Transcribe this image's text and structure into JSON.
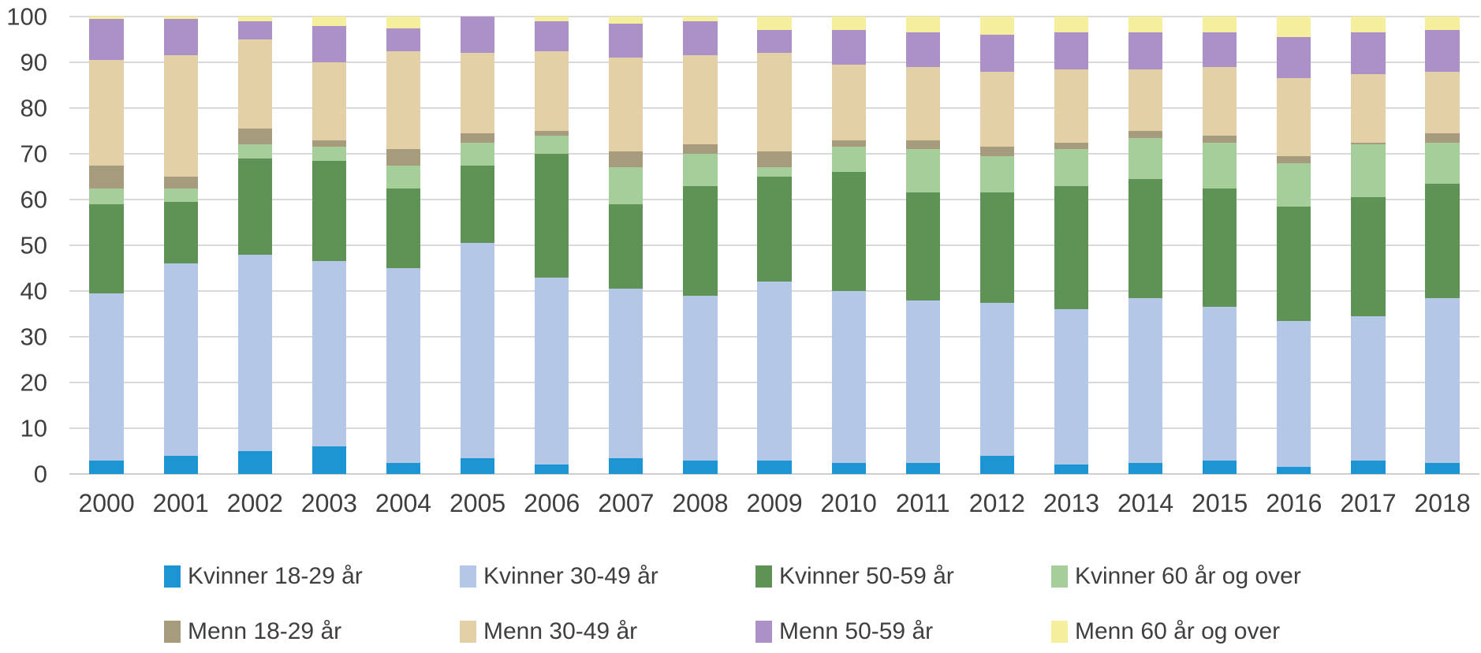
{
  "chart_data": {
    "type": "bar",
    "stacked": true,
    "normalized_to_100": true,
    "title": "",
    "xlabel": "",
    "ylabel": "",
    "ylim": [
      0,
      100
    ],
    "yticks": [
      0,
      10,
      20,
      30,
      40,
      50,
      60,
      70,
      80,
      90,
      100
    ],
    "grid": true,
    "legend_position": "bottom-two-rows",
    "axis_text_color": "#3f3f3f",
    "gridline_color": "#d9d9d9",
    "background_color": "#ffffff",
    "categories": [
      "2000",
      "2001",
      "2002",
      "2003",
      "2004",
      "2005",
      "2006",
      "2007",
      "2008",
      "2009",
      "2010",
      "2011",
      "2012",
      "2013",
      "2014",
      "2015",
      "2016",
      "2017",
      "2018"
    ],
    "series": [
      {
        "name": "Kvinner 18-29 år",
        "color": "#1e95d3",
        "values": [
          3,
          4,
          5,
          6,
          2.5,
          3.5,
          2,
          3.5,
          3,
          3,
          2.5,
          2.5,
          4,
          2,
          2.5,
          3,
          1.5,
          3,
          2.5
        ]
      },
      {
        "name": "Kvinner 30-49 år",
        "color": "#b4c7e7",
        "values": [
          36.5,
          42,
          43,
          40.5,
          42.5,
          47,
          41,
          37,
          36,
          39,
          37.5,
          35.5,
          33.5,
          34,
          36,
          33.5,
          32,
          31.5,
          36
        ]
      },
      {
        "name": "Kvinner 50-59 år",
        "color": "#5f9255",
        "values": [
          19.5,
          13.5,
          21,
          22,
          17.5,
          17,
          27,
          18.5,
          24,
          23,
          26,
          23.5,
          24,
          27,
          26,
          26,
          25,
          26,
          25
        ]
      },
      {
        "name": "Kvinner 60 år og over",
        "color": "#a6ce9b",
        "values": [
          3.5,
          3,
          3,
          3,
          5,
          5,
          4,
          8,
          7,
          2,
          5.5,
          9.5,
          8,
          8,
          9,
          10,
          9.5,
          11.5,
          9
        ]
      },
      {
        "name": "Menn 18-29 år",
        "color": "#a69b7d",
        "values": [
          5,
          2.5,
          3.5,
          1.5,
          3.5,
          2,
          1,
          3.5,
          2,
          3.5,
          1.5,
          2,
          2,
          1.5,
          1.5,
          1.5,
          1.5,
          0.5,
          2
        ]
      },
      {
        "name": "Menn 30-49 år",
        "color": "#e3d0a7",
        "values": [
          23,
          26.5,
          19.5,
          17,
          21.5,
          17.5,
          17.5,
          20.5,
          19.5,
          21.5,
          16.5,
          16,
          16.5,
          16,
          13.5,
          15,
          17,
          15,
          13.5
        ]
      },
      {
        "name": "Menn 50-59 år",
        "color": "#ab91c7",
        "values": [
          9,
          8,
          4,
          8,
          5,
          8,
          6.5,
          7.5,
          7.5,
          5,
          7.5,
          7.5,
          8,
          8,
          8,
          7.5,
          9,
          9,
          9
        ]
      },
      {
        "name": "Menn 60 år og over",
        "color": "#f5ee9c",
        "values": [
          0.5,
          0.5,
          1,
          2,
          2.5,
          0,
          1,
          1.5,
          1,
          3,
          3,
          3.5,
          4,
          3.5,
          3.5,
          3.5,
          4.5,
          3.5,
          3
        ]
      }
    ]
  }
}
